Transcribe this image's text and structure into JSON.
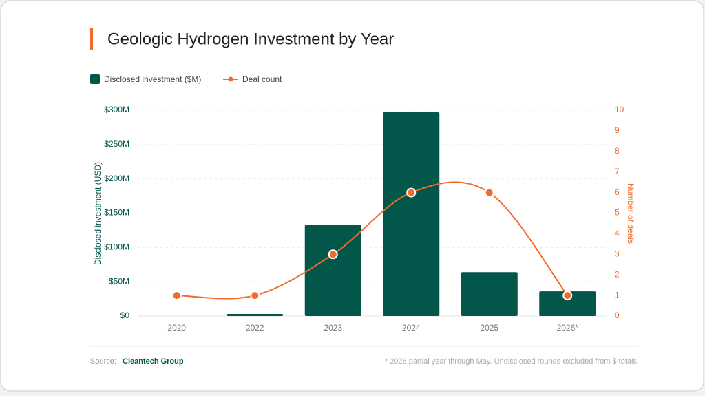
{
  "chart_data": {
    "type": "combo",
    "title": "Geologic Hydrogen Investment by Year",
    "categories": [
      "2020",
      "2022",
      "2023",
      "2024",
      "2025",
      "2026*"
    ],
    "series": [
      {
        "name": "Disclosed investment ($M)",
        "type": "bar",
        "color": "#03564a",
        "values": [
          0,
          3,
          133,
          297,
          64,
          36
        ]
      },
      {
        "name": "Deal count",
        "type": "line",
        "color": "#f26b2a",
        "axis": "y2",
        "values": [
          1,
          1,
          3,
          6,
          6,
          1
        ]
      }
    ],
    "ylabel": "Disclosed investment (USD)",
    "y2label": "Number of deals",
    "ylim": [
      0,
      300
    ],
    "yticks": [
      {
        "value": 0,
        "label": "$0"
      },
      {
        "value": 50,
        "label": "$50M"
      },
      {
        "value": 100,
        "label": "$100M"
      },
      {
        "value": 150,
        "label": "$150M"
      },
      {
        "value": 200,
        "label": "$200M"
      },
      {
        "value": 250,
        "label": "$250M"
      },
      {
        "value": 300,
        "label": "$300M"
      }
    ],
    "y2lim": [
      0,
      10
    ],
    "y2ticks": [
      0,
      1,
      2,
      3,
      4,
      5,
      6,
      7,
      8,
      9,
      10
    ],
    "grid": true,
    "source_label": "Source:",
    "source": "Cleantech Group",
    "note": "* 2026 partial year through May. Undisclosed rounds excluded from $ totals."
  }
}
